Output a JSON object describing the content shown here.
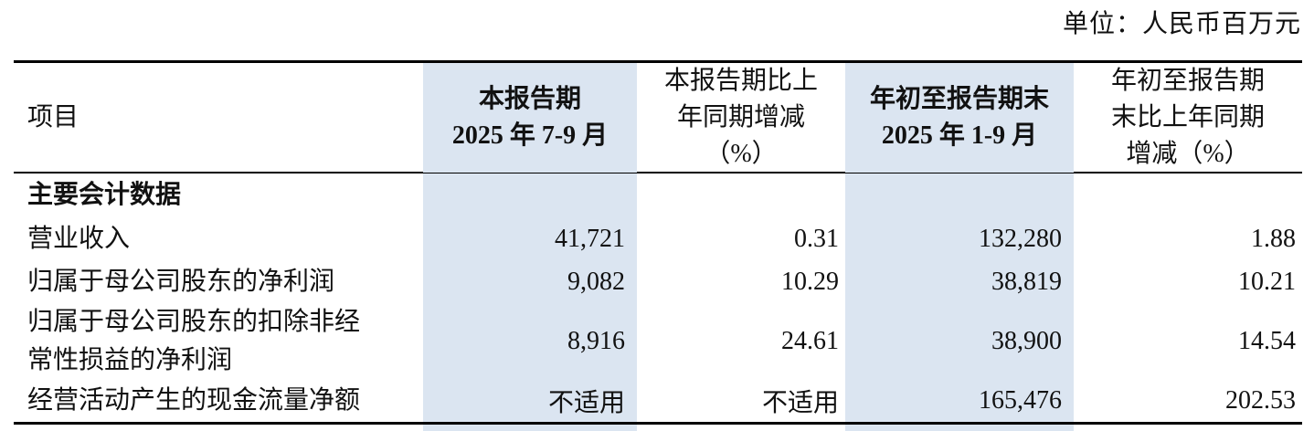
{
  "page": {
    "unit_label": "单位：人民币百万元",
    "accent_blue": "#dbe5f1"
  },
  "table": {
    "header": {
      "item": "项目",
      "current_period": {
        "line1": "本报告期",
        "line2": "2025 年 7-9 月"
      },
      "current_period_change": {
        "line1": "本报告期比上",
        "line2": "年同期增减",
        "line3": "（%）"
      },
      "ytd": {
        "line1": "年初至报告期末",
        "line2": "2025 年 1-9 月"
      },
      "ytd_change": {
        "line1": "年初至报告期",
        "line2": "末比上年同期",
        "line3": "增减（%）"
      }
    },
    "section": {
      "label": "主要会计数据"
    },
    "rows": [
      {
        "label": "营业收入",
        "current": "41,721",
        "current_change": "0.31",
        "ytd": "132,280",
        "ytd_change": "1.88"
      },
      {
        "label": "归属于母公司股东的净利润",
        "current": "9,082",
        "current_change": "10.29",
        "ytd": "38,819",
        "ytd_change": "10.21"
      },
      {
        "label": "归属于母公司股东的扣除非经常性损益的净利润",
        "current": "8,916",
        "current_change": "24.61",
        "ytd": "38,900",
        "ytd_change": "14.54"
      },
      {
        "label": "经营活动产生的现金流量净额",
        "current": "不适用",
        "current_change": "不适用",
        "ytd": "165,476",
        "ytd_change": "202.53"
      }
    ]
  }
}
